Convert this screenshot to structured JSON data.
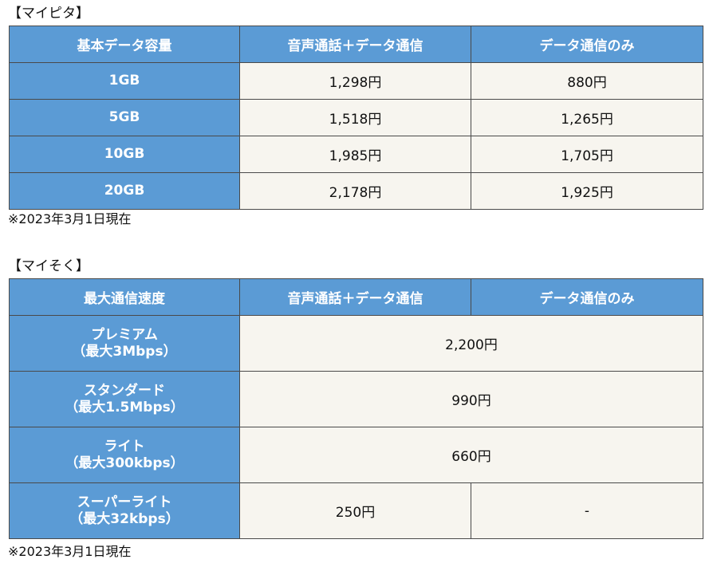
{
  "mypita": {
    "title": "【マイピタ】",
    "headers": [
      "基本データ容量",
      "音声通話＋データ通信",
      "データ通信のみ"
    ],
    "rows": [
      {
        "capacity": "1GB",
        "voice_data": "1,298円",
        "data_only": "880円"
      },
      {
        "capacity": "5GB",
        "voice_data": "1,518円",
        "data_only": "1,265円"
      },
      {
        "capacity": "10GB",
        "voice_data": "1,985円",
        "data_only": "1,705円"
      },
      {
        "capacity": "20GB",
        "voice_data": "2,178円",
        "data_only": "1,925円"
      }
    ],
    "note": "※2023年3月1日現在"
  },
  "maisoku": {
    "title": "【マイそく】",
    "headers": [
      "最大通信速度",
      "音声通話＋データ通信",
      "データ通信のみ"
    ],
    "rows": [
      {
        "plan": "プレミアム",
        "speed": "（最大3Mbps）",
        "price": "2,200円"
      },
      {
        "plan": "スタンダード",
        "speed": "（最大1.5Mbps）",
        "price": "990円"
      },
      {
        "plan": "ライト",
        "speed": "（最大300kbps）",
        "price": "660円"
      },
      {
        "plan": "スーパーライト",
        "speed": "（最大32kbps）",
        "voice_data": "250円",
        "data_only": "-"
      }
    ],
    "note": "※2023年3月1日現在"
  },
  "colors": {
    "header_bg": "#5b9bd5",
    "cell_bg": "#f7f5ef",
    "border": "#4a4a4a"
  }
}
